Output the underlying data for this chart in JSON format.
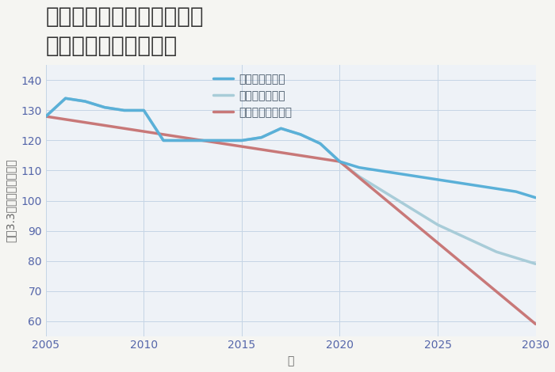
{
  "title_line1": "大阪府堺市堺区車之町東の",
  "title_line2": "中古戸建ての価格推移",
  "xlabel": "年",
  "ylabel": "坪（3.3㎡）単価（万円）",
  "background_color": "#f5f5f2",
  "plot_bg_color": "#eef2f7",
  "grid_color": "#c5d5e5",
  "xlim": [
    2005,
    2030
  ],
  "ylim": [
    55,
    145
  ],
  "yticks": [
    60,
    70,
    80,
    90,
    100,
    110,
    120,
    130,
    140
  ],
  "xticks": [
    2005,
    2010,
    2015,
    2020,
    2025,
    2030
  ],
  "good_scenario": {
    "label": "グッドシナリオ",
    "color": "#5ab0d8",
    "linewidth": 2.5,
    "x": [
      2005,
      2006,
      2007,
      2008,
      2009,
      2010,
      2011,
      2012,
      2013,
      2014,
      2015,
      2016,
      2017,
      2018,
      2019,
      2020,
      2021,
      2022,
      2023,
      2024,
      2025,
      2026,
      2027,
      2028,
      2029,
      2030
    ],
    "y": [
      128,
      134,
      133,
      131,
      130,
      130,
      120,
      120,
      120,
      120,
      120,
      121,
      124,
      122,
      119,
      113,
      111,
      110,
      109,
      108,
      107,
      106,
      105,
      104,
      103,
      101
    ]
  },
  "bad_scenario": {
    "label": "バッドシナリオ",
    "color": "#c87878",
    "linewidth": 2.5,
    "x": [
      2005,
      2020,
      2030
    ],
    "y": [
      128,
      113,
      59
    ]
  },
  "normal_scenario": {
    "label": "ノーマルシナリオ",
    "color": "#a8ccd8",
    "linewidth": 2.5,
    "x": [
      2005,
      2006,
      2007,
      2008,
      2009,
      2010,
      2011,
      2012,
      2013,
      2014,
      2015,
      2016,
      2017,
      2018,
      2019,
      2020,
      2021,
      2022,
      2023,
      2024,
      2025,
      2026,
      2027,
      2028,
      2029,
      2030
    ],
    "y": [
      128,
      134,
      133,
      131,
      130,
      130,
      120,
      120,
      120,
      120,
      120,
      121,
      124,
      122,
      119,
      113,
      108,
      104,
      100,
      96,
      92,
      89,
      86,
      83,
      81,
      79
    ]
  },
  "title_fontsize": 20,
  "legend_fontsize": 10,
  "tick_fontsize": 10,
  "axis_label_fontsize": 10
}
